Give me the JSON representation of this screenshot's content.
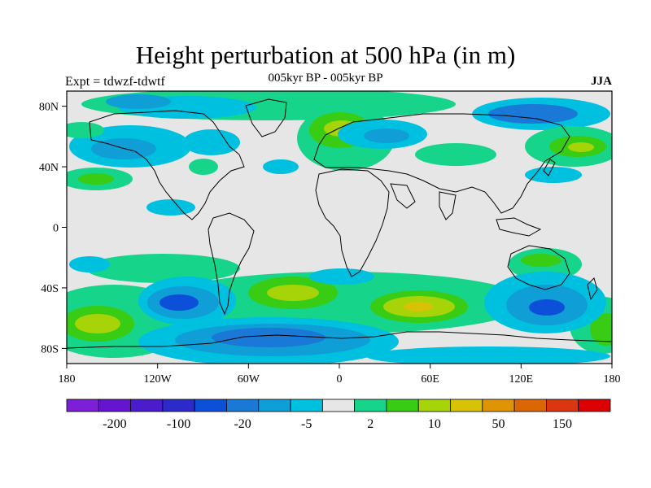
{
  "title": "Height perturbation at 500 hPa (in m)",
  "subtitle": "005kyr BP - 005kyr BP",
  "experiment": "Expt = tdwzf-tdwtf",
  "season": "JJA",
  "map": {
    "lat_ticks": [
      {
        "value": 80,
        "label": "80N"
      },
      {
        "value": 40,
        "label": "40N"
      },
      {
        "value": 0,
        "label": "0"
      },
      {
        "value": -40,
        "label": "40S"
      },
      {
        "value": -80,
        "label": "80S"
      }
    ],
    "lon_ticks": [
      {
        "value": -180,
        "label": "180"
      },
      {
        "value": -120,
        "label": "120W"
      },
      {
        "value": -60,
        "label": "60W"
      },
      {
        "value": 0,
        "label": "0"
      },
      {
        "value": 60,
        "label": "60E"
      },
      {
        "value": 120,
        "label": "120E"
      },
      {
        "value": 180,
        "label": "180"
      }
    ],
    "lat_range": [
      -90,
      90
    ],
    "lon_range": [
      -180,
      180
    ],
    "background_color": "#e6e6e6"
  },
  "colorbar": {
    "colors": [
      "#7c1fd6",
      "#6514d0",
      "#4a1ccc",
      "#2c2ac8",
      "#0c4fd8",
      "#1a78d6",
      "#109ed6",
      "#00c0e0",
      "#e6e6e6",
      "#16d48a",
      "#38cc14",
      "#a6d408",
      "#d8c208",
      "#de9404",
      "#da6606",
      "#da3612",
      "#dc0000"
    ],
    "labels": [
      {
        "index": 1.5,
        "text": "-200"
      },
      {
        "index": 3.5,
        "text": "-100"
      },
      {
        "index": 5.5,
        "text": "-20"
      },
      {
        "index": 7.5,
        "text": "-5"
      },
      {
        "index": 9.5,
        "text": "2"
      },
      {
        "index": 11.5,
        "text": "10"
      },
      {
        "index": 13.5,
        "text": "50"
      },
      {
        "index": 15.5,
        "text": "150"
      }
    ]
  }
}
